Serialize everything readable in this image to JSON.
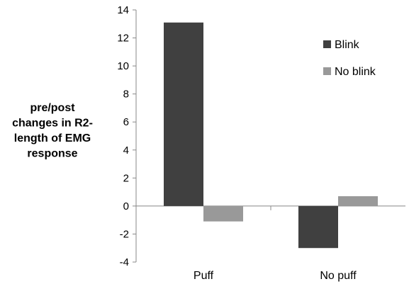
{
  "chart_data": {
    "type": "bar",
    "title": "",
    "ylabel_lines": [
      "pre/post",
      "changes in R2-",
      "length of EMG",
      "response"
    ],
    "xlabel": "",
    "categories": [
      "Puff",
      "No puff"
    ],
    "series": [
      {
        "name": "Blink",
        "values": [
          13.1,
          -3.0
        ],
        "color": "#404040"
      },
      {
        "name": "No blink",
        "values": [
          -1.1,
          0.7
        ],
        "color": "#999999"
      }
    ],
    "ylim": [
      -4,
      14
    ],
    "yticks": [
      -4,
      -2,
      0,
      2,
      4,
      6,
      8,
      10,
      12,
      14
    ],
    "grid": false,
    "legend_position": "right"
  }
}
